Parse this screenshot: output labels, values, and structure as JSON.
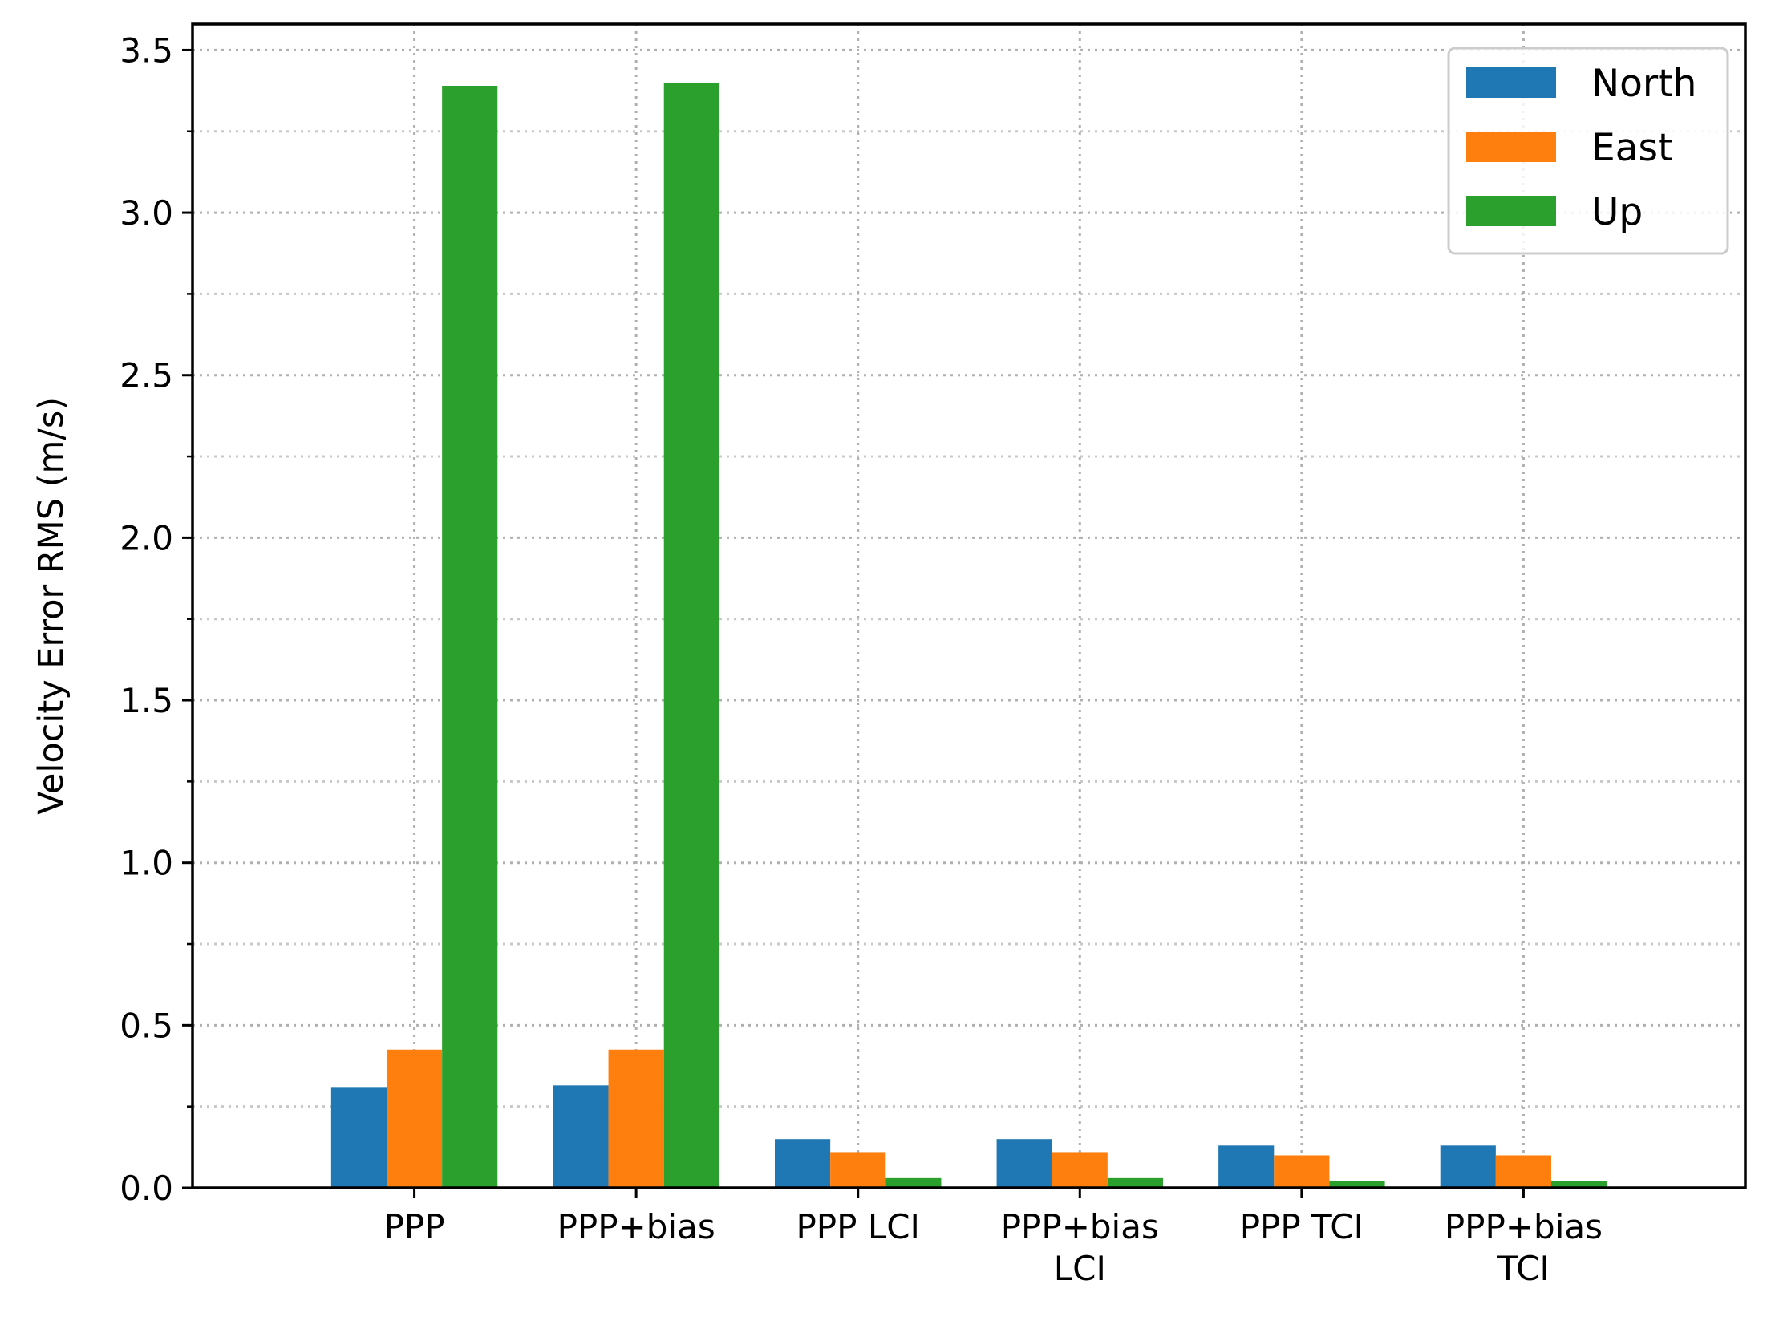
{
  "chart_data": {
    "type": "bar",
    "categories": [
      [
        "PPP"
      ],
      [
        "PPP+bias"
      ],
      [
        "PPP LCI"
      ],
      [
        "PPP+bias",
        "LCI"
      ],
      [
        "PPP TCI"
      ],
      [
        "PPP+bias",
        "TCI"
      ]
    ],
    "series": [
      {
        "name": "North",
        "color": "#1f77b4",
        "values": [
          0.31,
          0.315,
          0.15,
          0.15,
          0.13,
          0.13
        ]
      },
      {
        "name": "East",
        "color": "#ff7f0e",
        "values": [
          0.425,
          0.425,
          0.11,
          0.11,
          0.1,
          0.1
        ]
      },
      {
        "name": "Up",
        "color": "#2ca02c",
        "values": [
          3.39,
          3.4,
          0.03,
          0.03,
          0.02,
          0.02
        ]
      }
    ],
    "title": "",
    "xlabel": "",
    "ylabel": "Velocity Error RMS (m/s)",
    "ylim": [
      0,
      3.58
    ],
    "yticks": [
      "0.0",
      "0.5",
      "1.0",
      "1.5",
      "2.0",
      "2.5",
      "3.0",
      "3.5"
    ],
    "ytick_values": [
      0,
      0.5,
      1.0,
      1.5,
      2.0,
      2.5,
      3.0,
      3.5
    ],
    "minor_ytick_step": 0.25,
    "grid": true,
    "legend_position": "top-right"
  }
}
